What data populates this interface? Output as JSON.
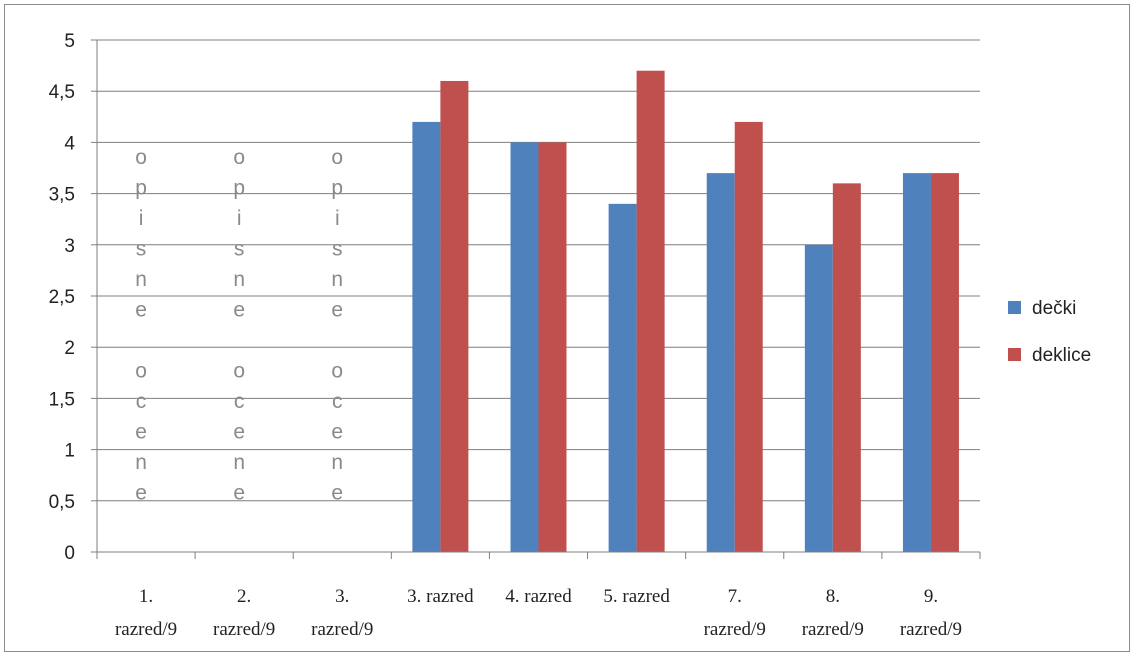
{
  "chart_data": {
    "type": "bar",
    "categories": [
      [
        "1.",
        "razred/9"
      ],
      [
        "2.",
        "razred/9"
      ],
      [
        "3.",
        "razred/9"
      ],
      [
        "3. razred"
      ],
      [
        "4. razred"
      ],
      [
        "5. razred"
      ],
      [
        "7.",
        "razred/9"
      ],
      [
        "8.",
        "razred/9"
      ],
      [
        "9.",
        "razred/9"
      ]
    ],
    "series": [
      {
        "name": "dečki",
        "color": "#4f81bd",
        "values": [
          null,
          null,
          null,
          4.2,
          4.0,
          3.4,
          3.7,
          3.0,
          3.7
        ]
      },
      {
        "name": "deklice",
        "color": "#c0504d",
        "values": [
          null,
          null,
          null,
          4.6,
          4.0,
          4.7,
          4.2,
          3.6,
          3.7
        ]
      }
    ],
    "ylim": [
      0,
      5
    ],
    "yticks": [
      0,
      0.5,
      1,
      1.5,
      2,
      2.5,
      3,
      3.5,
      4,
      4.5,
      5
    ],
    "ytick_labels": [
      "0",
      "0,5",
      "1",
      "1,5",
      "2",
      "2,5",
      "3",
      "3,5",
      "4",
      "4,5",
      "5"
    ],
    "grid": true,
    "legend": "right",
    "annotations": [
      {
        "category_index": 0,
        "chars": [
          "o",
          "p",
          "i",
          "s",
          "n",
          "e",
          "",
          "o",
          "c",
          "e",
          "n",
          "e"
        ]
      },
      {
        "category_index": 1,
        "chars": [
          "o",
          "p",
          "i",
          "s",
          "n",
          "e",
          "",
          "o",
          "c",
          "e",
          "n",
          "e"
        ]
      },
      {
        "category_index": 2,
        "chars": [
          "o",
          "p",
          "i",
          "s",
          "n",
          "e",
          "",
          "o",
          "c",
          "e",
          "n",
          "e"
        ]
      }
    ],
    "title": "",
    "xlabel": "",
    "ylabel": ""
  }
}
